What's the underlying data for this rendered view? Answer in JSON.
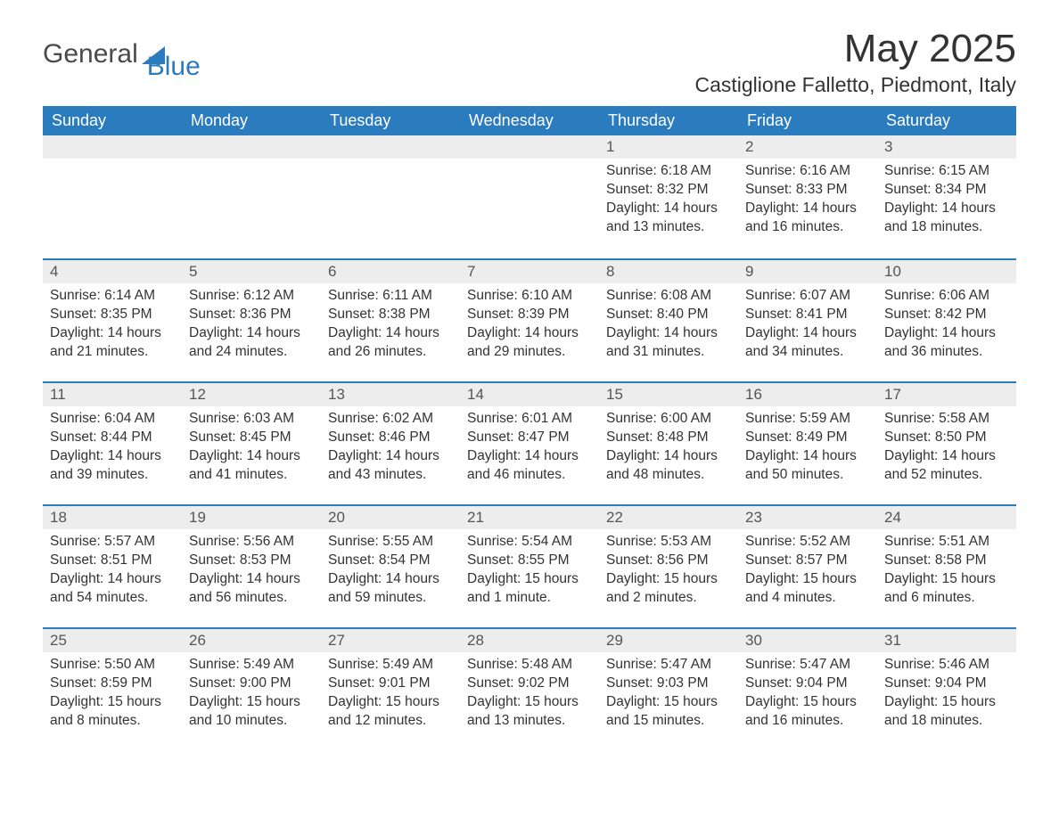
{
  "brand": {
    "part1": "General",
    "part2": "Blue"
  },
  "title": "May 2025",
  "location": "Castiglione Falletto, Piedmont, Italy",
  "colors": {
    "header_bg": "#2b7bbf",
    "header_text": "#ffffff",
    "daynum_bg": "#ededed",
    "row_border": "#2b7bbf",
    "body_text": "#333333",
    "logo_general": "#4a4a4a",
    "logo_blue": "#2b7bbf",
    "background": "#ffffff"
  },
  "typography": {
    "title_fontsize": 44,
    "location_fontsize": 23,
    "weekday_fontsize": 18,
    "daynum_fontsize": 17,
    "body_fontsize": 15.5,
    "logo_fontsize": 30
  },
  "weekdays": [
    "Sunday",
    "Monday",
    "Tuesday",
    "Wednesday",
    "Thursday",
    "Friday",
    "Saturday"
  ],
  "weeks": [
    [
      null,
      null,
      null,
      null,
      {
        "n": "1",
        "sunrise": "Sunrise: 6:18 AM",
        "sunset": "Sunset: 8:32 PM",
        "daylight": "Daylight: 14 hours and 13 minutes."
      },
      {
        "n": "2",
        "sunrise": "Sunrise: 6:16 AM",
        "sunset": "Sunset: 8:33 PM",
        "daylight": "Daylight: 14 hours and 16 minutes."
      },
      {
        "n": "3",
        "sunrise": "Sunrise: 6:15 AM",
        "sunset": "Sunset: 8:34 PM",
        "daylight": "Daylight: 14 hours and 18 minutes."
      }
    ],
    [
      {
        "n": "4",
        "sunrise": "Sunrise: 6:14 AM",
        "sunset": "Sunset: 8:35 PM",
        "daylight": "Daylight: 14 hours and 21 minutes."
      },
      {
        "n": "5",
        "sunrise": "Sunrise: 6:12 AM",
        "sunset": "Sunset: 8:36 PM",
        "daylight": "Daylight: 14 hours and 24 minutes."
      },
      {
        "n": "6",
        "sunrise": "Sunrise: 6:11 AM",
        "sunset": "Sunset: 8:38 PM",
        "daylight": "Daylight: 14 hours and 26 minutes."
      },
      {
        "n": "7",
        "sunrise": "Sunrise: 6:10 AM",
        "sunset": "Sunset: 8:39 PM",
        "daylight": "Daylight: 14 hours and 29 minutes."
      },
      {
        "n": "8",
        "sunrise": "Sunrise: 6:08 AM",
        "sunset": "Sunset: 8:40 PM",
        "daylight": "Daylight: 14 hours and 31 minutes."
      },
      {
        "n": "9",
        "sunrise": "Sunrise: 6:07 AM",
        "sunset": "Sunset: 8:41 PM",
        "daylight": "Daylight: 14 hours and 34 minutes."
      },
      {
        "n": "10",
        "sunrise": "Sunrise: 6:06 AM",
        "sunset": "Sunset: 8:42 PM",
        "daylight": "Daylight: 14 hours and 36 minutes."
      }
    ],
    [
      {
        "n": "11",
        "sunrise": "Sunrise: 6:04 AM",
        "sunset": "Sunset: 8:44 PM",
        "daylight": "Daylight: 14 hours and 39 minutes."
      },
      {
        "n": "12",
        "sunrise": "Sunrise: 6:03 AM",
        "sunset": "Sunset: 8:45 PM",
        "daylight": "Daylight: 14 hours and 41 minutes."
      },
      {
        "n": "13",
        "sunrise": "Sunrise: 6:02 AM",
        "sunset": "Sunset: 8:46 PM",
        "daylight": "Daylight: 14 hours and 43 minutes."
      },
      {
        "n": "14",
        "sunrise": "Sunrise: 6:01 AM",
        "sunset": "Sunset: 8:47 PM",
        "daylight": "Daylight: 14 hours and 46 minutes."
      },
      {
        "n": "15",
        "sunrise": "Sunrise: 6:00 AM",
        "sunset": "Sunset: 8:48 PM",
        "daylight": "Daylight: 14 hours and 48 minutes."
      },
      {
        "n": "16",
        "sunrise": "Sunrise: 5:59 AM",
        "sunset": "Sunset: 8:49 PM",
        "daylight": "Daylight: 14 hours and 50 minutes."
      },
      {
        "n": "17",
        "sunrise": "Sunrise: 5:58 AM",
        "sunset": "Sunset: 8:50 PM",
        "daylight": "Daylight: 14 hours and 52 minutes."
      }
    ],
    [
      {
        "n": "18",
        "sunrise": "Sunrise: 5:57 AM",
        "sunset": "Sunset: 8:51 PM",
        "daylight": "Daylight: 14 hours and 54 minutes."
      },
      {
        "n": "19",
        "sunrise": "Sunrise: 5:56 AM",
        "sunset": "Sunset: 8:53 PM",
        "daylight": "Daylight: 14 hours and 56 minutes."
      },
      {
        "n": "20",
        "sunrise": "Sunrise: 5:55 AM",
        "sunset": "Sunset: 8:54 PM",
        "daylight": "Daylight: 14 hours and 59 minutes."
      },
      {
        "n": "21",
        "sunrise": "Sunrise: 5:54 AM",
        "sunset": "Sunset: 8:55 PM",
        "daylight": "Daylight: 15 hours and 1 minute."
      },
      {
        "n": "22",
        "sunrise": "Sunrise: 5:53 AM",
        "sunset": "Sunset: 8:56 PM",
        "daylight": "Daylight: 15 hours and 2 minutes."
      },
      {
        "n": "23",
        "sunrise": "Sunrise: 5:52 AM",
        "sunset": "Sunset: 8:57 PM",
        "daylight": "Daylight: 15 hours and 4 minutes."
      },
      {
        "n": "24",
        "sunrise": "Sunrise: 5:51 AM",
        "sunset": "Sunset: 8:58 PM",
        "daylight": "Daylight: 15 hours and 6 minutes."
      }
    ],
    [
      {
        "n": "25",
        "sunrise": "Sunrise: 5:50 AM",
        "sunset": "Sunset: 8:59 PM",
        "daylight": "Daylight: 15 hours and 8 minutes."
      },
      {
        "n": "26",
        "sunrise": "Sunrise: 5:49 AM",
        "sunset": "Sunset: 9:00 PM",
        "daylight": "Daylight: 15 hours and 10 minutes."
      },
      {
        "n": "27",
        "sunrise": "Sunrise: 5:49 AM",
        "sunset": "Sunset: 9:01 PM",
        "daylight": "Daylight: 15 hours and 12 minutes."
      },
      {
        "n": "28",
        "sunrise": "Sunrise: 5:48 AM",
        "sunset": "Sunset: 9:02 PM",
        "daylight": "Daylight: 15 hours and 13 minutes."
      },
      {
        "n": "29",
        "sunrise": "Sunrise: 5:47 AM",
        "sunset": "Sunset: 9:03 PM",
        "daylight": "Daylight: 15 hours and 15 minutes."
      },
      {
        "n": "30",
        "sunrise": "Sunrise: 5:47 AM",
        "sunset": "Sunset: 9:04 PM",
        "daylight": "Daylight: 15 hours and 16 minutes."
      },
      {
        "n": "31",
        "sunrise": "Sunrise: 5:46 AM",
        "sunset": "Sunset: 9:04 PM",
        "daylight": "Daylight: 15 hours and 18 minutes."
      }
    ]
  ]
}
